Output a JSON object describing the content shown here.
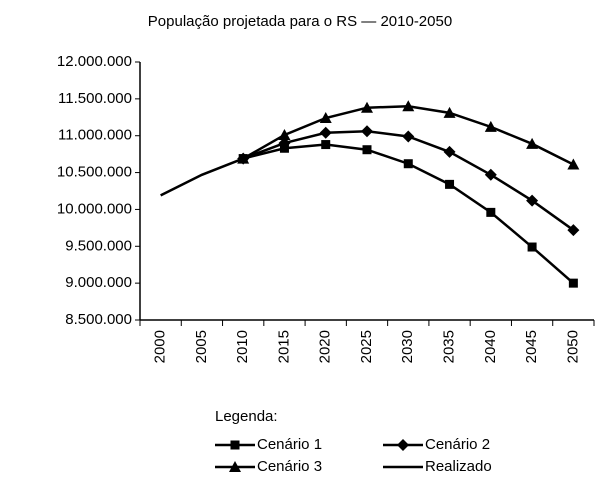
{
  "chart_data": {
    "type": "line",
    "title": "População projetada para o RS — 2010-2050",
    "categories": [
      "2000",
      "2005",
      "2010",
      "2015",
      "2020",
      "2025",
      "2030",
      "2035",
      "2040",
      "2045",
      "2050"
    ],
    "series": [
      {
        "name": "Cenário 1",
        "color": "#000000",
        "marker": "square",
        "values": [
          null,
          null,
          10690000,
          10830000,
          10880000,
          10810000,
          10620000,
          10340000,
          9960000,
          9490000,
          9000000
        ]
      },
      {
        "name": "Cenário 2",
        "color": "#000000",
        "marker": "diamond",
        "values": [
          null,
          null,
          10690000,
          10900000,
          11040000,
          11060000,
          10990000,
          10780000,
          10470000,
          10120000,
          9720000
        ]
      },
      {
        "name": "Cenário 3",
        "color": "#000000",
        "marker": "triangle",
        "values": [
          null,
          null,
          10690000,
          11010000,
          11240000,
          11380000,
          11400000,
          11310000,
          11120000,
          10890000,
          10610000
        ]
      },
      {
        "name": "Realizado",
        "color": "#000000",
        "marker": "none",
        "values": [
          10190000,
          10470000,
          10690000,
          null,
          null,
          null,
          null,
          null,
          null,
          null,
          null
        ]
      }
    ],
    "ylim": [
      8500000,
      12000000
    ],
    "yticks": [
      {
        "value": 8500000,
        "label": "8.500.000"
      },
      {
        "value": 9000000,
        "label": "9.000.000"
      },
      {
        "value": 9500000,
        "label": "9.500.000"
      },
      {
        "value": 10000000,
        "label": "10.000.000"
      },
      {
        "value": 10500000,
        "label": "10.500.000"
      },
      {
        "value": 11000000,
        "label": "11.000.000"
      },
      {
        "value": 11500000,
        "label": "11.500.000"
      },
      {
        "value": 12000000,
        "label": "12.000.000"
      }
    ],
    "legend_title": "Legenda:",
    "grid": false
  }
}
